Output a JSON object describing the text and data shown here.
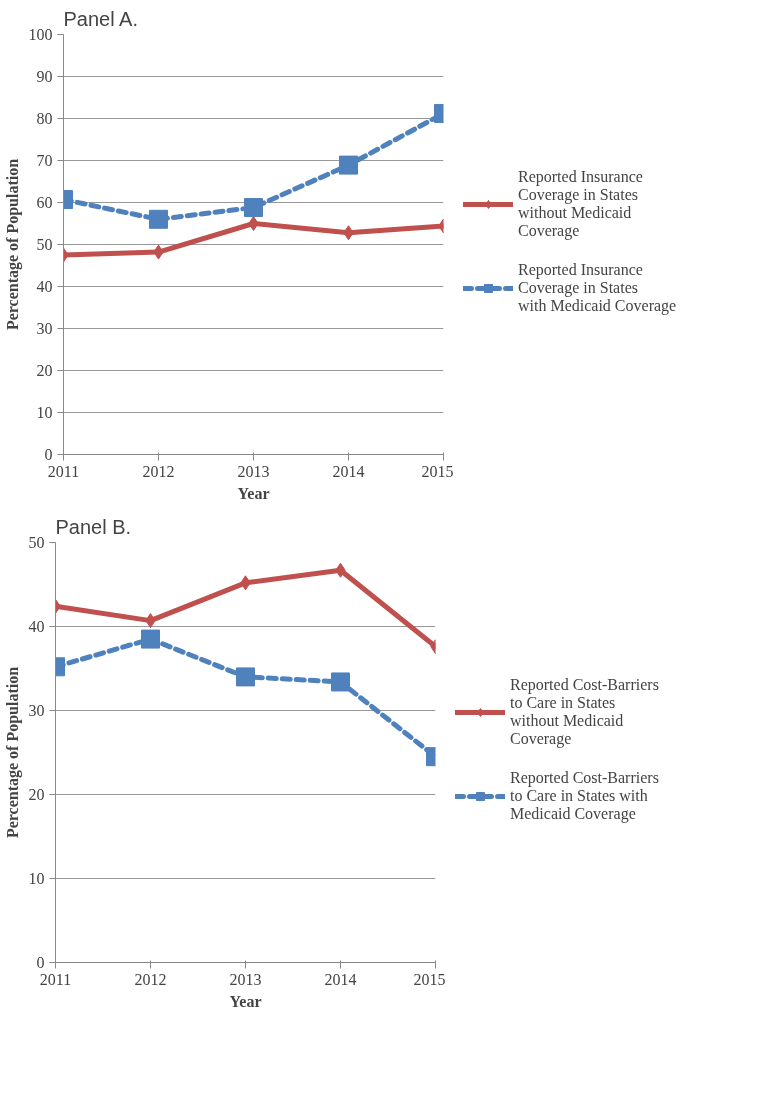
{
  "chart_data": [
    {
      "type": "line",
      "title": "Panel A.",
      "xlabel": "Year",
      "ylabel": "Percentage of Population",
      "categories": [
        "2011",
        "2012",
        "2013",
        "2014",
        "2015"
      ],
      "ylim": [
        0,
        100
      ],
      "yticks": [
        0,
        10,
        20,
        30,
        40,
        50,
        60,
        70,
        80,
        90,
        100
      ],
      "grid": "y",
      "legend": "right",
      "series": [
        {
          "name": "Reported Insurance Coverage in States without Medicaid Coverage",
          "color": "#c0504d",
          "marker": "diamond",
          "line_style": "solid",
          "values": [
            47.5,
            48.2,
            55,
            52.8,
            54.4
          ]
        },
        {
          "name": "Reported Insurance Coverage in States with Medicaid Coverage",
          "color": "#4f81bd",
          "marker": "square",
          "line_style": "dashed",
          "values": [
            60.7,
            56,
            58.8,
            68.9,
            81.2
          ]
        }
      ]
    },
    {
      "type": "line",
      "title": "Panel B.",
      "xlabel": "Year",
      "ylabel": "Percentage of Population",
      "categories": [
        "2011",
        "2012",
        "2013",
        "2014",
        "2015"
      ],
      "ylim": [
        0,
        50
      ],
      "yticks": [
        0,
        10,
        20,
        30,
        40,
        50
      ],
      "grid": "y",
      "legend": "right",
      "series": [
        {
          "name": "Reported Cost-Barriers to Care in States without Medicaid Coverage",
          "color": "#c0504d",
          "marker": "diamond",
          "line_style": "solid",
          "values": [
            42.4,
            40.7,
            45.2,
            46.7,
            37.6
          ]
        },
        {
          "name": "Reported Cost-Barriers to Care in States with Medicaid Coverage",
          "color": "#4f81bd",
          "marker": "square",
          "line_style": "dashed",
          "values": [
            35.2,
            38.5,
            34.0,
            33.4,
            24.5
          ]
        }
      ]
    }
  ]
}
